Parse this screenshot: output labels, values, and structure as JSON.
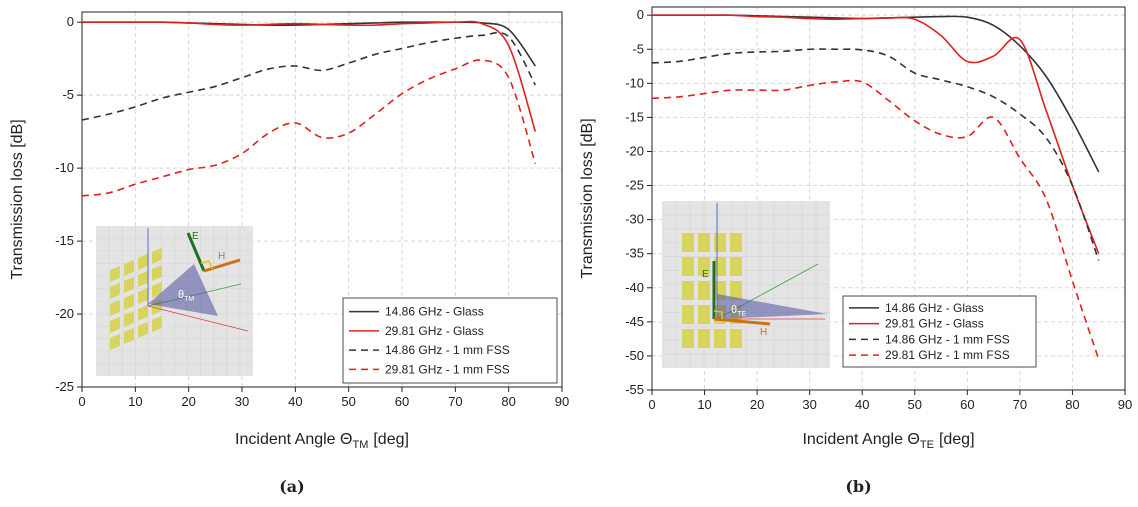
{
  "chart_data": [
    {
      "type": "line",
      "caption": "(a)",
      "x_label": {
        "text": "Incident Angle Θ",
        "sub": "TM",
        "unit": "[deg]"
      },
      "y_label": "Transmission loss [dB]",
      "x": [
        0,
        5,
        10,
        15,
        20,
        25,
        30,
        35,
        40,
        45,
        50,
        55,
        60,
        65,
        70,
        75,
        80,
        85
      ],
      "series": [
        {
          "name": "14.86 GHz - Glass",
          "color": "#333333",
          "dash": false,
          "values": [
            0,
            0,
            0,
            0,
            -0.05,
            -0.1,
            -0.15,
            -0.2,
            -0.2,
            -0.15,
            -0.1,
            -0.05,
            0,
            0,
            0,
            -0.05,
            -0.5,
            -3.0
          ]
        },
        {
          "name": "29.81 GHz - Glass",
          "color": "#e02020",
          "dash": false,
          "values": [
            0,
            0,
            0,
            0,
            -0.05,
            -0.15,
            -0.2,
            -0.15,
            -0.1,
            -0.15,
            -0.2,
            -0.2,
            -0.1,
            -0.05,
            0,
            -0.1,
            -1.6,
            -7.5
          ]
        },
        {
          "name": "14.86 GHz - 1 mm FSS",
          "color": "#333333",
          "dash": true,
          "values": [
            -6.7,
            -6.3,
            -5.8,
            -5.2,
            -4.8,
            -4.4,
            -3.8,
            -3.2,
            -3.0,
            -3.3,
            -2.8,
            -2.2,
            -1.8,
            -1.4,
            -1.1,
            -0.9,
            -1.0,
            -4.3
          ]
        },
        {
          "name": "29.81 GHz - 1 mm FSS",
          "color": "#e02020",
          "dash": true,
          "values": [
            -11.9,
            -11.7,
            -11.1,
            -10.6,
            -10.1,
            -9.8,
            -9.0,
            -7.6,
            -6.9,
            -7.9,
            -7.6,
            -6.3,
            -4.9,
            -3.9,
            -3.2,
            -2.6,
            -3.8,
            -9.7
          ]
        }
      ],
      "xlim": [
        0,
        90
      ],
      "xticks": [
        0,
        10,
        20,
        30,
        40,
        50,
        60,
        70,
        80,
        90
      ],
      "ylim": [
        -25,
        0.7
      ],
      "yticks": [
        -25,
        -20,
        -15,
        -10,
        -5,
        0
      ],
      "grid": true,
      "legend_loc": "lower right",
      "inset": {
        "e_label": "E",
        "h_label": "H",
        "angle_label": "θ",
        "angle_sub": "TM"
      }
    },
    {
      "type": "line",
      "caption": "(b)",
      "x_label": {
        "text": "Incident Angle Θ",
        "sub": "TE",
        "unit": "[deg]"
      },
      "y_label": "Transmission loss [dB]",
      "x": [
        0,
        5,
        10,
        15,
        20,
        25,
        30,
        35,
        40,
        45,
        50,
        55,
        60,
        65,
        70,
        75,
        80,
        85
      ],
      "series": [
        {
          "name": "14.86 GHz - Glass",
          "color": "#333333",
          "dash": false,
          "values": [
            0,
            0,
            0,
            0,
            -0.1,
            -0.2,
            -0.3,
            -0.4,
            -0.5,
            -0.4,
            -0.3,
            -0.2,
            -0.3,
            -1.5,
            -4.5,
            -9,
            -15.5,
            -23
          ]
        },
        {
          "name": "29.81 GHz - Glass",
          "color": "#e02020",
          "dash": false,
          "values": [
            0,
            0,
            0,
            0,
            -0.2,
            -0.3,
            -0.5,
            -0.6,
            -0.5,
            -0.4,
            -0.6,
            -3.0,
            -6.8,
            -6.0,
            -3.6,
            -14,
            -25,
            -35
          ]
        },
        {
          "name": "14.86 GHz - 1 mm FSS",
          "color": "#333333",
          "dash": true,
          "values": [
            -7.0,
            -6.8,
            -6.2,
            -5.6,
            -5.4,
            -5.3,
            -5.0,
            -5.0,
            -5.1,
            -6.0,
            -8.5,
            -9.5,
            -10.5,
            -12.0,
            -14.5,
            -18,
            -25,
            -36
          ]
        },
        {
          "name": "29.81 GHz - 1 mm FSS",
          "color": "#e02020",
          "dash": true,
          "values": [
            -12.2,
            -12.0,
            -11.5,
            -11.0,
            -11.0,
            -11.0,
            -10.3,
            -9.8,
            -9.8,
            -12.5,
            -15.5,
            -17.5,
            -17.8,
            -15.0,
            -21,
            -27,
            -39,
            -50.5
          ]
        }
      ],
      "xlim": [
        0,
        90
      ],
      "xticks": [
        0,
        10,
        20,
        30,
        40,
        50,
        60,
        70,
        80,
        90
      ],
      "ylim": [
        -55,
        1.2
      ],
      "yticks": [
        -55,
        -50,
        -45,
        -40,
        -35,
        -30,
        -25,
        -20,
        -15,
        -10,
        -5,
        0
      ],
      "grid": true,
      "legend_loc": "lower right",
      "inset": {
        "e_label": "E",
        "h_label": "H",
        "angle_label": "θ",
        "angle_sub": "TE"
      }
    }
  ]
}
